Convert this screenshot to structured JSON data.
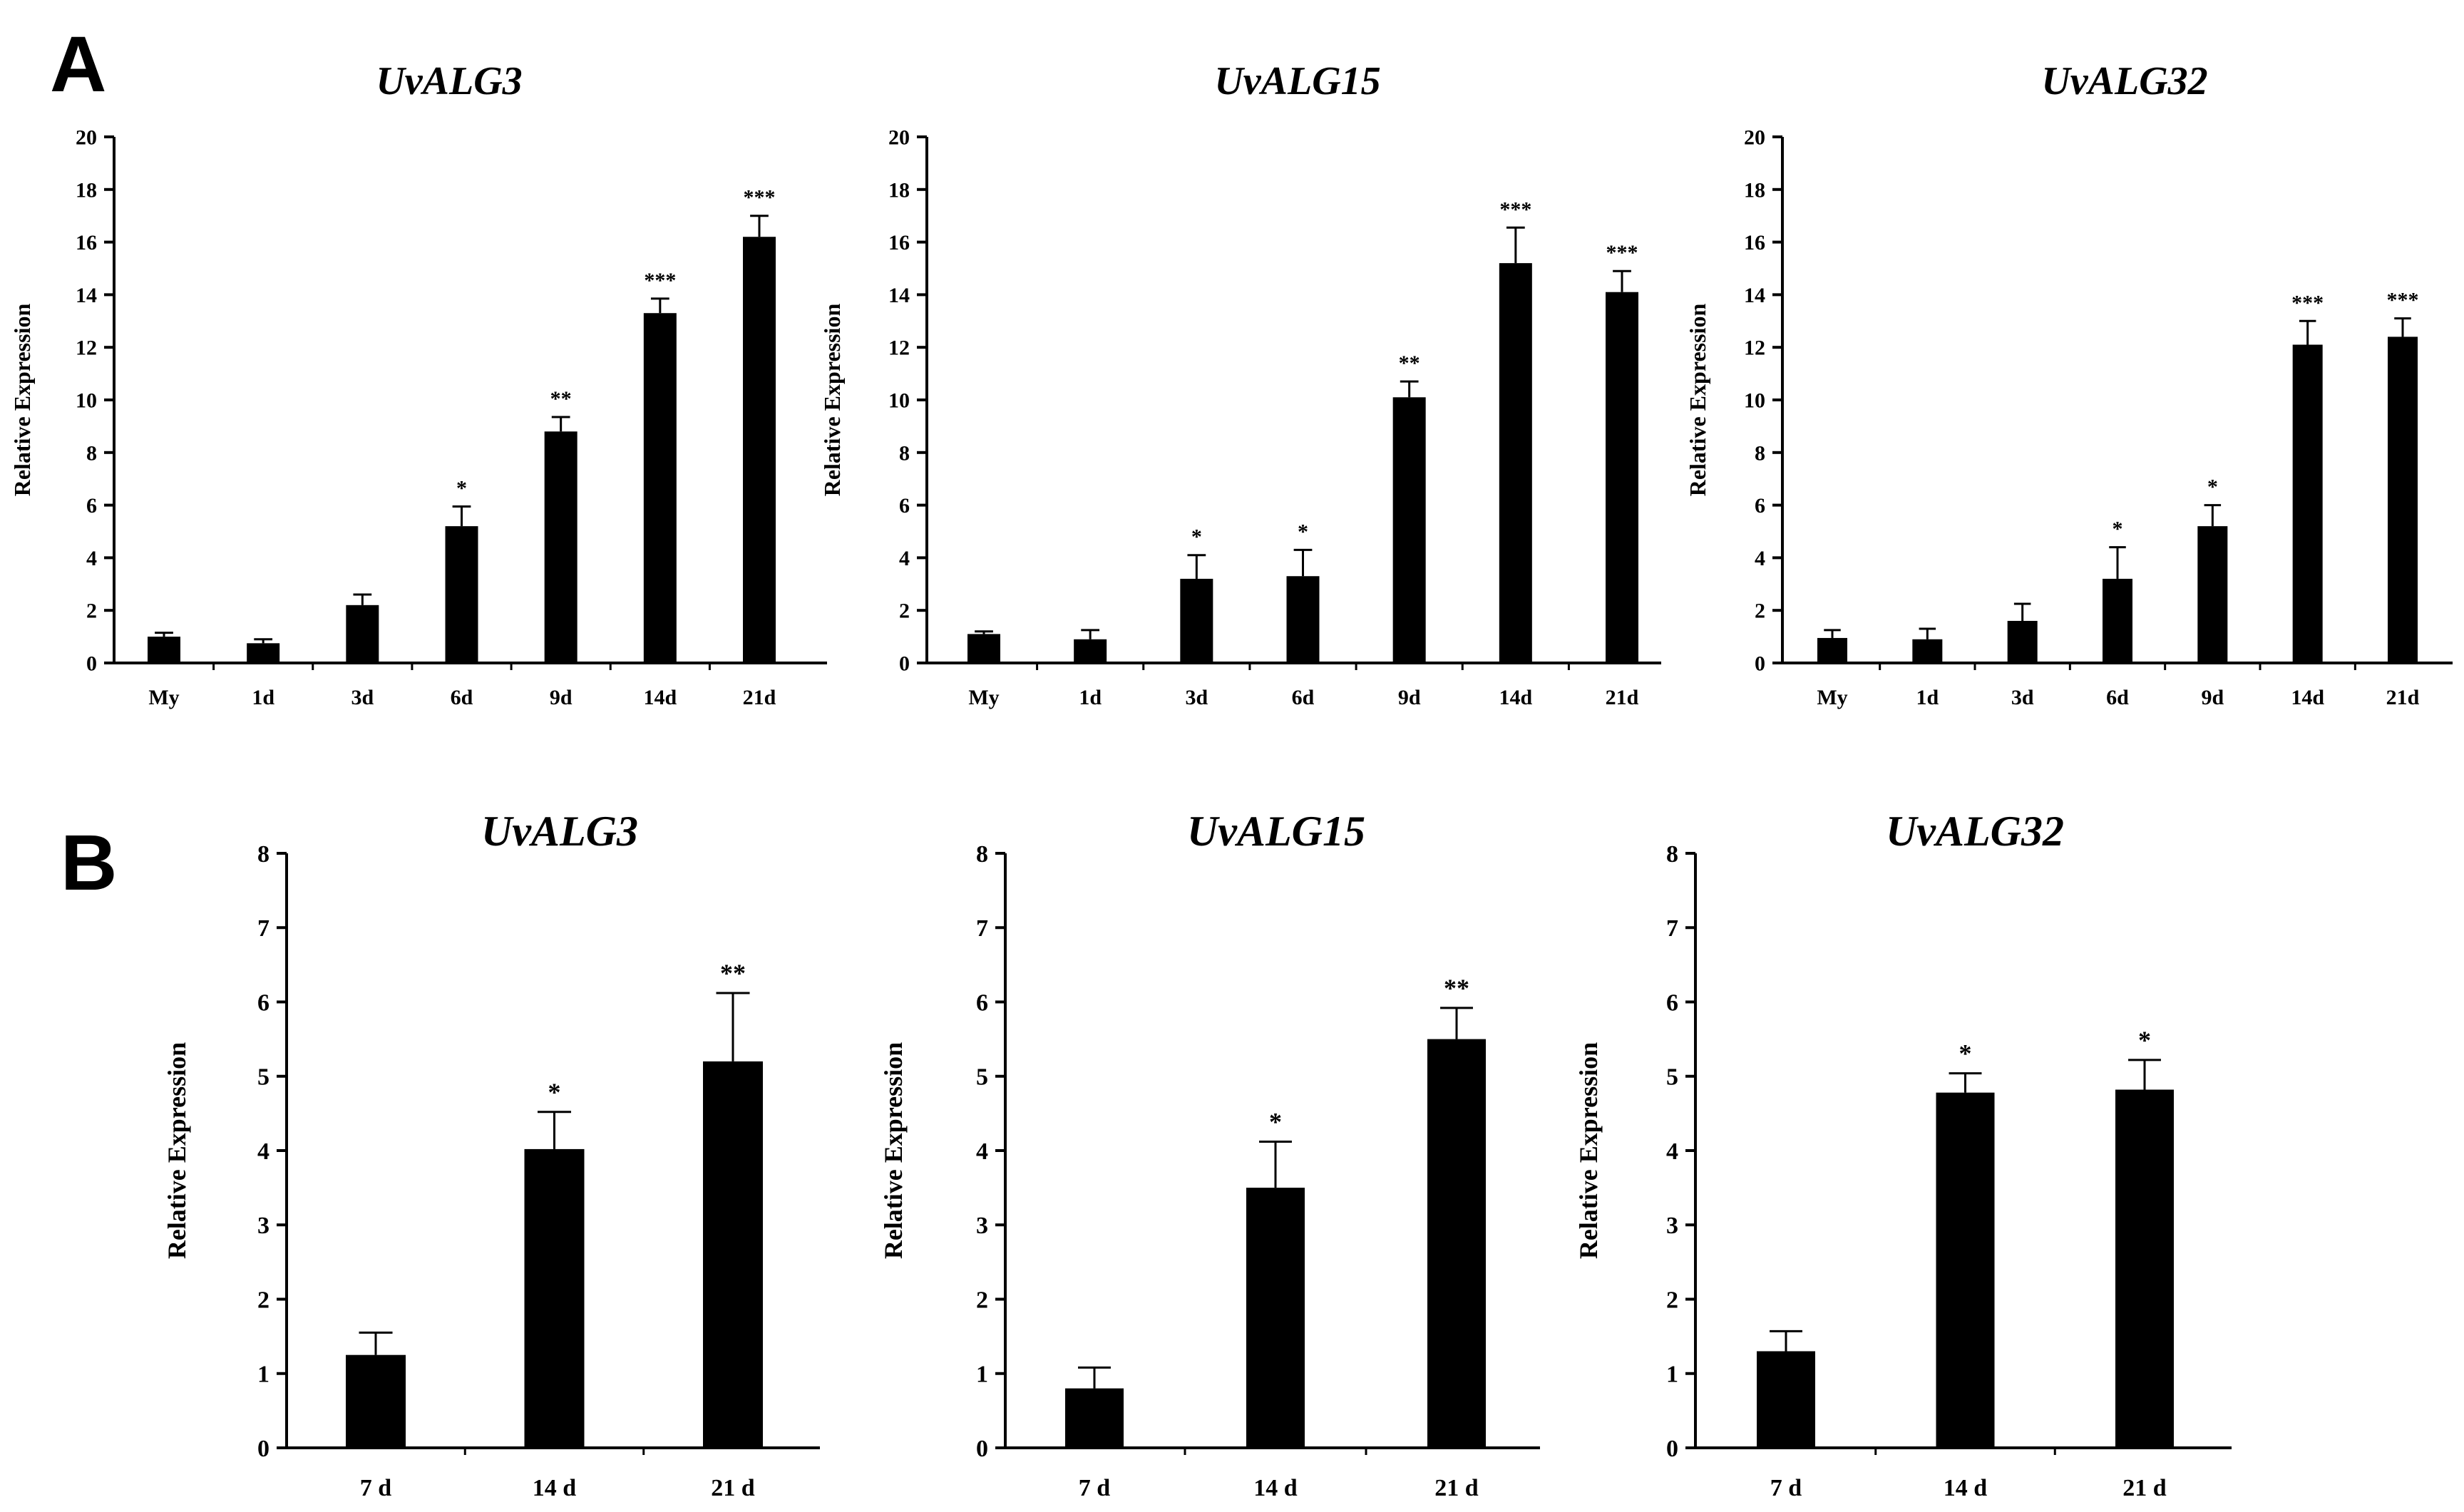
{
  "panel_labels": [
    "A",
    "B"
  ],
  "chart_data": [
    {
      "type": "bar",
      "panel": "A",
      "title": "UvALG3",
      "ylabel": "Relative Expression",
      "ylim": [
        0,
        20
      ],
      "yticks": [
        0,
        2,
        4,
        6,
        8,
        10,
        12,
        14,
        16,
        18,
        20
      ],
      "categories": [
        "My",
        "1d",
        "3d",
        "6d",
        "9d",
        "14d",
        "21d"
      ],
      "values": [
        1.0,
        0.75,
        2.2,
        5.2,
        8.8,
        13.3,
        16.2
      ],
      "errors": [
        0.15,
        0.15,
        0.4,
        0.75,
        0.55,
        0.55,
        0.8
      ],
      "significance": [
        "",
        "",
        "",
        "*",
        "**",
        "***",
        "***"
      ]
    },
    {
      "type": "bar",
      "panel": "A",
      "title": "UvALG15",
      "ylabel": "Relative Expression",
      "ylim": [
        0,
        20
      ],
      "yticks": [
        0,
        2,
        4,
        6,
        8,
        10,
        12,
        14,
        16,
        18,
        20
      ],
      "categories": [
        "My",
        "1d",
        "3d",
        "6d",
        "9d",
        "14d",
        "21d"
      ],
      "values": [
        1.1,
        0.9,
        3.2,
        3.3,
        10.1,
        15.2,
        14.1
      ],
      "errors": [
        0.1,
        0.35,
        0.9,
        1.0,
        0.6,
        1.35,
        0.8
      ],
      "significance": [
        "",
        "",
        "*",
        "*",
        "**",
        "***",
        "***"
      ]
    },
    {
      "type": "bar",
      "panel": "A",
      "title": "UvALG32",
      "ylabel": "Relative Expression",
      "ylim": [
        0,
        20
      ],
      "yticks": [
        0,
        2,
        4,
        6,
        8,
        10,
        12,
        14,
        16,
        18,
        20
      ],
      "categories": [
        "My",
        "1d",
        "3d",
        "6d",
        "9d",
        "14d",
        "21d"
      ],
      "values": [
        0.95,
        0.9,
        1.6,
        3.2,
        5.2,
        12.1,
        12.4
      ],
      "errors": [
        0.3,
        0.4,
        0.65,
        1.2,
        0.8,
        0.9,
        0.7
      ],
      "significance": [
        "",
        "",
        "",
        "*",
        "*",
        "***",
        "***"
      ]
    },
    {
      "type": "bar",
      "panel": "B",
      "title": "UvALG3",
      "ylabel": "Relative Expression",
      "ylim": [
        0,
        8
      ],
      "yticks": [
        0,
        1,
        2,
        3,
        4,
        5,
        6,
        7,
        8
      ],
      "categories": [
        "7 d",
        "14 d",
        "21 d"
      ],
      "values": [
        1.25,
        4.02,
        5.2
      ],
      "errors": [
        0.3,
        0.5,
        0.92
      ],
      "significance": [
        "",
        "*",
        "**"
      ]
    },
    {
      "type": "bar",
      "panel": "B",
      "title": "UvALG15",
      "ylabel": "Relative Expression",
      "ylim": [
        0,
        8
      ],
      "yticks": [
        0,
        1,
        2,
        3,
        4,
        5,
        6,
        7,
        8
      ],
      "categories": [
        "7 d",
        "14 d",
        "21 d"
      ],
      "values": [
        0.8,
        3.5,
        5.5
      ],
      "errors": [
        0.28,
        0.62,
        0.42
      ],
      "significance": [
        "",
        "*",
        "**"
      ]
    },
    {
      "type": "bar",
      "panel": "B",
      "title": "UvALG32",
      "ylabel": "Relative Expression",
      "ylim": [
        0,
        8
      ],
      "yticks": [
        0,
        1,
        2,
        3,
        4,
        5,
        6,
        7,
        8
      ],
      "categories": [
        "7 d",
        "14 d",
        "21 d"
      ],
      "values": [
        1.3,
        4.78,
        4.82
      ],
      "errors": [
        0.27,
        0.26,
        0.4
      ],
      "significance": [
        "",
        "*",
        "*"
      ]
    }
  ]
}
